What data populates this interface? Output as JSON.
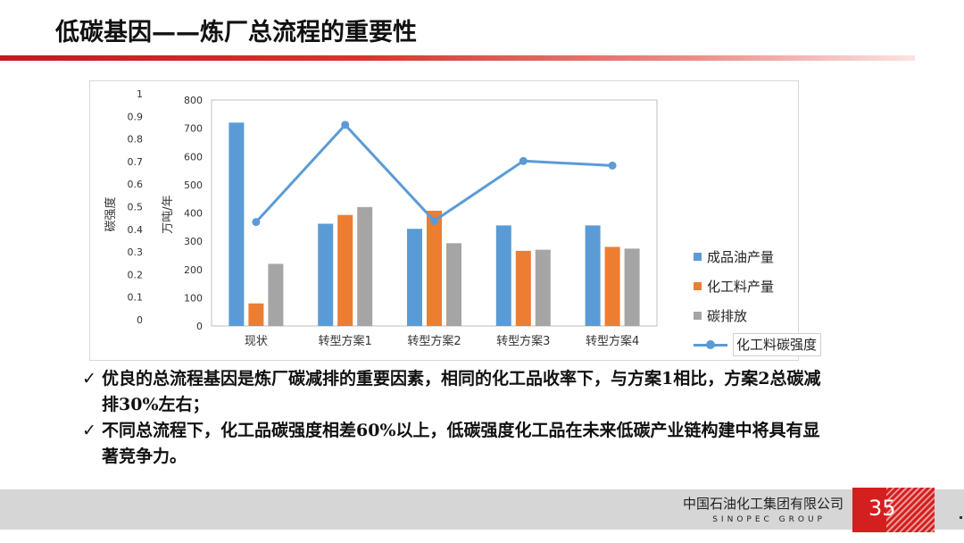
{
  "slide": {
    "title": "低碳基因——炼厂总流程的重要性",
    "bullets": [
      "优良的总流程基因是炼厂碳减排的重要因素，相同的化工品收率下，与方案1相比，方案2总碳减排30%左右；",
      "不同总流程下，化工品碳强度相差60%以上，低碳强度化工品在未来低碳产业链构建中将具有显著竞争力。"
    ],
    "bullet_mark": "✓",
    "footer": {
      "company": "中国石油化工集团有限公司",
      "group": "SINOPEC GROUP",
      "page": "35"
    }
  },
  "chart_data": {
    "type": "bar",
    "categories": [
      "现状",
      "转型方案1",
      "转型方案2",
      "转型方案3",
      "转型方案4"
    ],
    "series": [
      {
        "name": "成品油产量",
        "type": "bar",
        "axis": "right",
        "color": "#5b9bd5",
        "values": [
          720,
          362,
          344,
          356,
          356
        ]
      },
      {
        "name": "化工料产量",
        "type": "bar",
        "axis": "right",
        "color": "#ed7d31",
        "values": [
          80,
          393,
          408,
          266,
          280
        ]
      },
      {
        "name": "碳排放",
        "type": "bar",
        "axis": "right",
        "color": "#a5a5a5",
        "values": [
          220,
          421,
          293,
          270,
          274
        ]
      },
      {
        "name": "化工料碳强度",
        "type": "line",
        "axis": "left",
        "color": "#5b9bd5",
        "values": [
          0.46,
          0.89,
          0.465,
          0.73,
          0.71
        ]
      }
    ],
    "y_left": {
      "label": "碳强度",
      "ylim": [
        0,
        1
      ],
      "ticks": [
        "0",
        "0.1",
        "0.2",
        "0.3",
        "0.4",
        "0.5",
        "0.6",
        "0.7",
        "0.8",
        "0.9",
        "1"
      ]
    },
    "y_right": {
      "label": "万吨/年",
      "ylim": [
        0,
        800
      ],
      "ticks": [
        "0",
        "100",
        "200",
        "300",
        "400",
        "500",
        "600",
        "700",
        "800"
      ]
    },
    "grid": false,
    "legend": "right"
  }
}
